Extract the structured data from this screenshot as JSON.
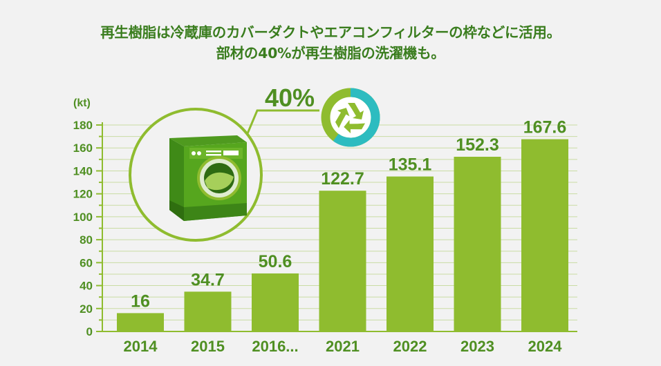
{
  "headline": {
    "line1": "再生樹脂は冷蔵庫のカバーダクトやエアコンフィルターの枠などに活用。",
    "line2": "部材の40%が再生樹脂の洗濯機も。"
  },
  "colors": {
    "bar": "#8fbc2f",
    "text": "#4f8f22",
    "ring": "#2dbcc0",
    "ring_track": "#8fbc2f",
    "background": "#f2f2f2"
  },
  "inset": {
    "percent_label": "40%",
    "percent_value": 40,
    "icons": [
      "washing-machine-icon",
      "recycle-icon"
    ]
  },
  "chart_data": {
    "type": "bar",
    "ylabel": "(kt)",
    "ylim": [
      0,
      180
    ],
    "yticks": [
      0,
      20,
      40,
      60,
      80,
      100,
      120,
      140,
      160,
      180
    ],
    "categories": [
      "2014",
      "2015",
      "2016...",
      "2021",
      "2022",
      "2023",
      "2024"
    ],
    "values": [
      16,
      34.7,
      50.6,
      122.7,
      135.1,
      152.3,
      167.6
    ],
    "value_labels": [
      "16",
      "34.7",
      "50.6",
      "122.7",
      "135.1",
      "152.3",
      "167.6"
    ],
    "grid": true
  }
}
